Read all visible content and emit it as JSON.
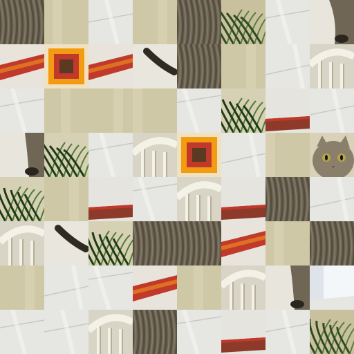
{
  "puzzle": {
    "type": "sliding-tile-shuffle",
    "grid_rows": 8,
    "grid_cols": 8,
    "tiles": [
      [
        "cat-fur",
        "wall",
        "tablecloth",
        "wall",
        "cat-fur",
        "plant-wall",
        "tablecloth",
        "cat-paw"
      ],
      [
        "placemat-edge",
        "placemat-corner",
        "placemat-edge",
        "cat-tail",
        "cat-fur",
        "wall",
        "tablecloth",
        "chair-back"
      ],
      [
        "tablecloth",
        "wall",
        "wall",
        "wall",
        "tablecloth",
        "plant",
        "placemat-side",
        "tablecloth"
      ],
      [
        "cat-paw",
        "plant",
        "tablecloth",
        "chair-back",
        "placemat-corner",
        "tablecloth",
        "wall",
        "cat-face"
      ],
      [
        "plant",
        "wall",
        "placemat-side",
        "tablecloth",
        "chair-back",
        "placemat-side",
        "cat-fur",
        "tablecloth"
      ],
      [
        "chair-back",
        "cat-tail",
        "plant",
        "cat-fur",
        "cat-fur",
        "placemat-edge",
        "wall",
        "cat-fur"
      ],
      [
        "wall",
        "tablecloth",
        "tablecloth",
        "placemat-edge",
        "wall",
        "chair-back",
        "cat-paw",
        "window"
      ],
      [
        "tablecloth",
        "tablecloth",
        "chair-back",
        "cat-fur",
        "tablecloth",
        "placemat-side",
        "tablecloth",
        "plant-wall"
      ]
    ]
  },
  "palette": {
    "cat-fur": {
      "base": "#6f6655",
      "shade": "#3f382d",
      "hi": "#9a917d"
    },
    "cat-face": {
      "base": "#8a7f6b",
      "shade": "#4a4236",
      "hi": "#c9bfa8"
    },
    "cat-paw": {
      "base": "#cfcab8",
      "shade": "#4a4236",
      "hi": "#e8e4d8"
    },
    "cat-tail": {
      "base": "#e9e6de",
      "shade": "#2f2a22",
      "hi": "#ffffff"
    },
    "wall": {
      "base": "#cfc8a6",
      "shade": "#b8b08c",
      "hi": "#ddd7ba"
    },
    "plant-wall": {
      "base": "#c9c19e",
      "shade": "#2f4a22",
      "hi": "#5a7d3c"
    },
    "plant": {
      "base": "#d6d0b4",
      "shade": "#1f3a18",
      "hi": "#4f7a35"
    },
    "tablecloth": {
      "base": "#e6e6e2",
      "shade": "#c9c9c4",
      "hi": "#f5f5f3"
    },
    "placemat-edge": {
      "base": "#e8e4dc",
      "shade": "#c0392b",
      "hi": "#e67e22"
    },
    "placemat-corner": {
      "base": "#c0392b",
      "shade": "#5a3a20",
      "hi": "#f39c12"
    },
    "placemat-side": {
      "base": "#e6e4de",
      "shade": "#8e3a2a",
      "hi": "#c0392b"
    },
    "chair-back": {
      "base": "#d8d4c6",
      "shade": "#b5ae98",
      "hi": "#f4f1e6"
    },
    "window": {
      "base": "#dfe4ea",
      "shade": "#bcc5d0",
      "hi": "#f4f7fa"
    }
  }
}
